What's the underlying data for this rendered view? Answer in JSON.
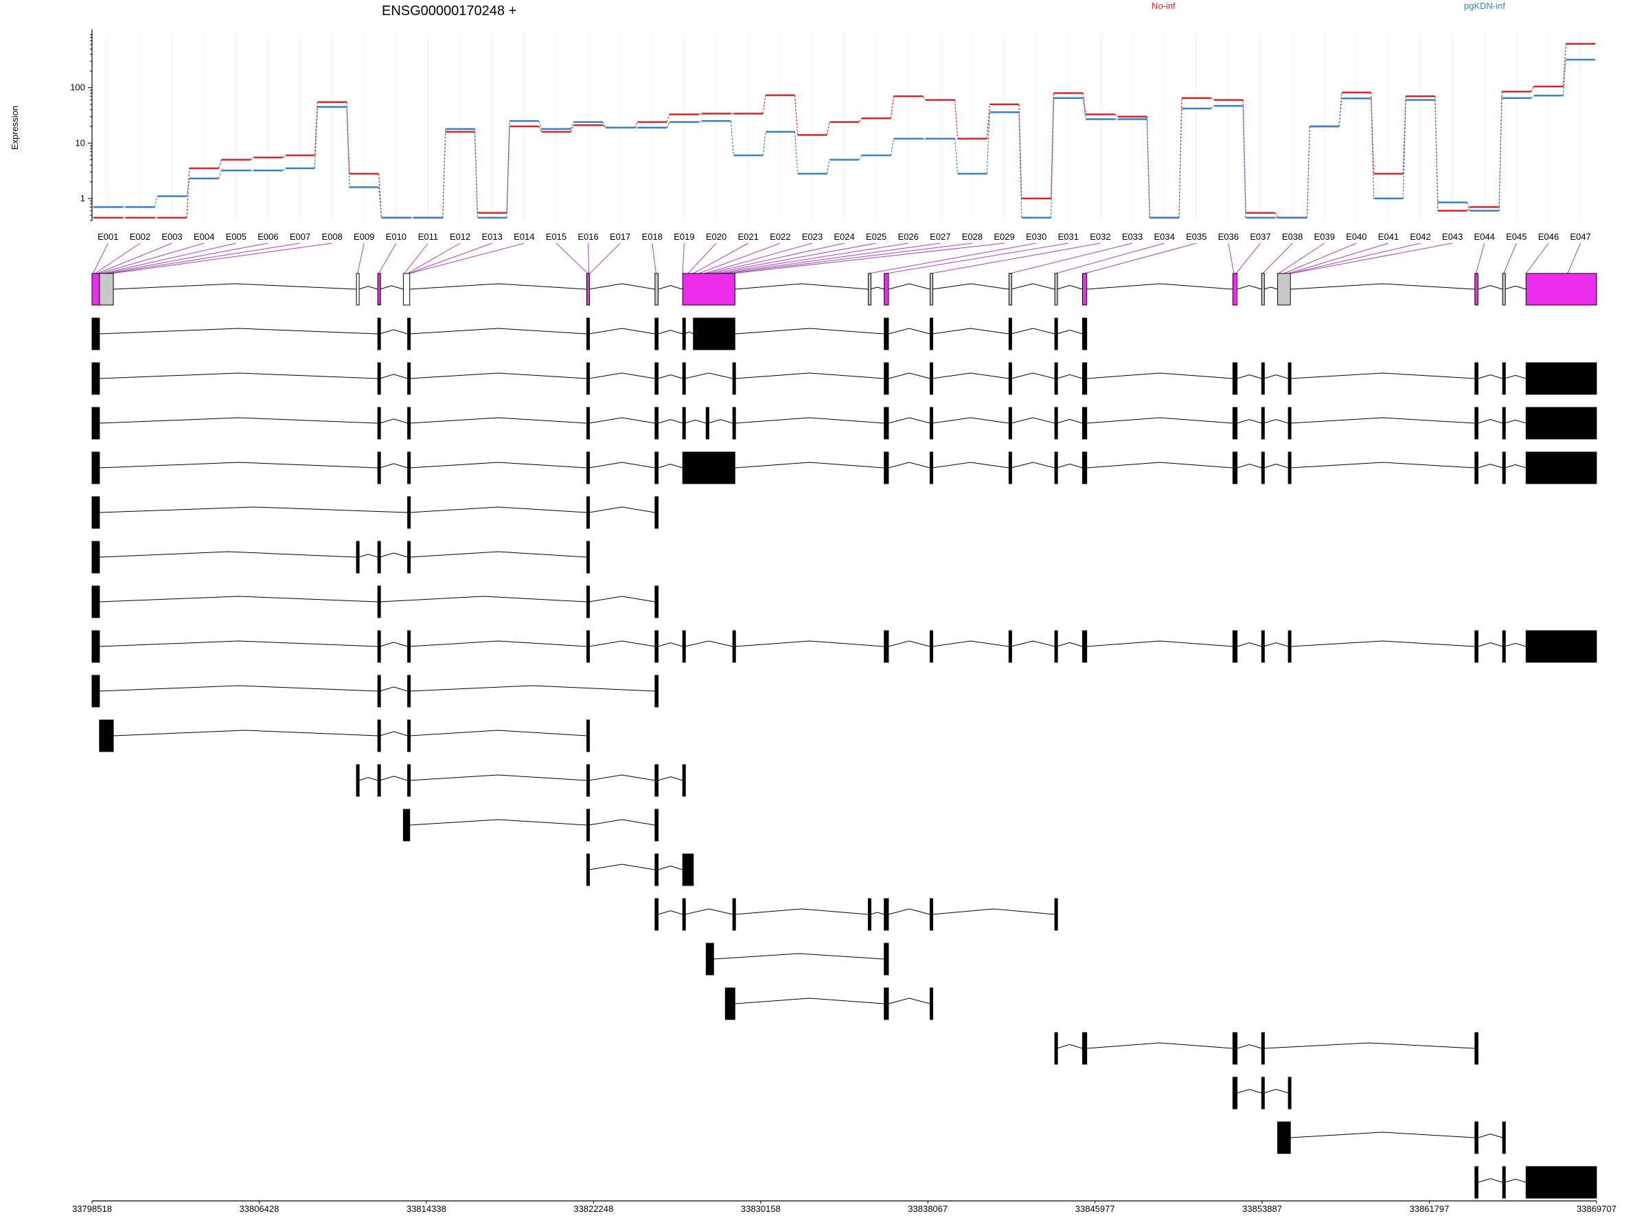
{
  "chart_data": {
    "type": "exon_usage",
    "title": "ENSG00000170248 +",
    "y_label": "Expression",
    "y_log": true,
    "ylim": [
      0.4,
      1000
    ],
    "yticks": [
      1,
      10,
      100
    ],
    "categories": [
      "E001",
      "E002",
      "E003",
      "E004",
      "E005",
      "E006",
      "E007",
      "E008",
      "E009",
      "E010",
      "E011",
      "E012",
      "E013",
      "E014",
      "E015",
      "E016",
      "E017",
      "E018",
      "E019",
      "E020",
      "E021",
      "E022",
      "E023",
      "E024",
      "E025",
      "E026",
      "E027",
      "E028",
      "E029",
      "E030",
      "E031",
      "E032",
      "E033",
      "E034",
      "E035",
      "E036",
      "E037",
      "E038",
      "E039",
      "E040",
      "E041",
      "E042",
      "E043",
      "E044",
      "E045",
      "E046",
      "E047"
    ],
    "series": [
      {
        "name": "No-inf",
        "color": "#d7262b",
        "values": [
          0.45,
          0.45,
          0.45,
          3.5,
          5,
          5.5,
          6,
          55,
          2.8,
          0.45,
          0.45,
          16,
          0.55,
          20,
          16,
          21,
          19,
          24,
          33,
          34,
          34,
          73,
          14,
          24,
          28,
          70,
          60,
          12,
          50,
          1,
          80,
          33,
          30,
          0.45,
          65,
          60,
          0.55,
          0.45,
          20,
          82,
          2.8,
          70,
          0.6,
          0.7,
          85,
          105,
          620
        ]
      },
      {
        "name": "pgKDN-inf",
        "color": "#3a7fc0",
        "values": [
          0.7,
          0.7,
          1.1,
          2.3,
          3.2,
          3.2,
          3.5,
          45,
          1.6,
          0.45,
          0.45,
          18,
          0.45,
          25,
          18,
          24,
          19,
          19,
          24,
          25,
          6,
          16,
          2.8,
          5,
          6,
          12,
          12,
          2.8,
          36,
          0.45,
          65,
          27,
          27,
          0.45,
          42,
          47,
          0.45,
          0.45,
          20,
          64,
          1,
          60,
          0.85,
          0.6,
          65,
          72,
          320
        ]
      }
    ],
    "bin_positions": [
      33798568,
      33798669,
      33798770,
      33798871,
      33799023,
      33799174,
      33799325,
      33799477,
      33811080,
      33812089,
      33813299,
      33813451,
      33813501,
      33813552,
      33821977,
      33822028,
      33822078,
      33825206,
      33826467,
      33826719,
      33826972,
      33827224,
      33827476,
      33827628,
      33827830,
      33828082,
      33828334,
      33828586,
      33828838,
      33835296,
      33836103,
      33838222,
      33841955,
      33844125,
      33845487,
      33852550,
      33852651,
      33853912,
      33854669,
      33854921,
      33855123,
      33855224,
      33855274,
      33864002,
      33865314,
      33866373,
      33868341
    ],
    "connector_color": "#a248b4",
    "xlim": [
      33798518,
      33869707
    ],
    "xticks": [
      33798518,
      33806428,
      33814338,
      33822248,
      33830158,
      33838067,
      33845977,
      33853887,
      33861797,
      33869707
    ],
    "gene_model": [
      {
        "start": 33798518,
        "end": 33798871,
        "color": "#ee2cee"
      },
      {
        "start": 33798871,
        "end": 33799527,
        "color": "#c8c8c8"
      },
      {
        "start": 33811030,
        "end": 33811130,
        "color": "#ffffff"
      },
      {
        "start": 33812039,
        "end": 33812139,
        "color": "#ee2cee"
      },
      {
        "start": 33813249,
        "end": 33813552,
        "color": "#ffffff"
      },
      {
        "start": 33821927,
        "end": 33822028,
        "color": "#ee2cee"
      },
      {
        "start": 33825156,
        "end": 33825307,
        "color": "#c8c8c8"
      },
      {
        "start": 33826467,
        "end": 33828939,
        "color": "#ee2cee"
      },
      {
        "start": 33835246,
        "end": 33835347,
        "color": "#c8c8c8"
      },
      {
        "start": 33836002,
        "end": 33836204,
        "color": "#ee2cee"
      },
      {
        "start": 33838172,
        "end": 33838273,
        "color": "#c8c8c8"
      },
      {
        "start": 33841905,
        "end": 33842006,
        "color": "#c8c8c8"
      },
      {
        "start": 33844074,
        "end": 33844175,
        "color": "#c8c8c8"
      },
      {
        "start": 33845386,
        "end": 33845588,
        "color": "#ee2cee"
      },
      {
        "start": 33852500,
        "end": 33852702,
        "color": "#ee2cee"
      },
      {
        "start": 33853862,
        "end": 33853963,
        "color": "#c8c8c8"
      },
      {
        "start": 33854618,
        "end": 33855224,
        "color": "#c8c8c8"
      },
      {
        "start": 33863952,
        "end": 33864103,
        "color": "#ee2cee"
      },
      {
        "start": 33865264,
        "end": 33865364,
        "color": "#c8c8c8"
      },
      {
        "start": 33866373,
        "end": 33869707,
        "color": "#ee2cee"
      }
    ],
    "exon_color": "#000000",
    "transcripts": [
      [
        [
          33798518,
          33798871
        ],
        [
          33812039,
          33812139
        ],
        [
          33813451,
          33813552
        ],
        [
          33821927,
          33822028
        ],
        [
          33825156,
          33825307
        ],
        [
          33826467,
          33826568
        ],
        [
          33826972,
          33828939
        ],
        [
          33836002,
          33836204
        ],
        [
          33838172,
          33838273
        ],
        [
          33841905,
          33842006
        ],
        [
          33844074,
          33844175
        ],
        [
          33845386,
          33845588
        ]
      ],
      [
        [
          33798518,
          33798871
        ],
        [
          33812039,
          33812139
        ],
        [
          33813451,
          33813552
        ],
        [
          33821927,
          33822028
        ],
        [
          33825156,
          33825307
        ],
        [
          33826467,
          33826568
        ],
        [
          33828838,
          33828939
        ],
        [
          33836002,
          33836204
        ],
        [
          33838172,
          33838273
        ],
        [
          33841905,
          33842006
        ],
        [
          33844074,
          33844175
        ],
        [
          33845386,
          33845588
        ],
        [
          33852500,
          33852702
        ],
        [
          33853862,
          33853963
        ],
        [
          33855123,
          33855224
        ],
        [
          33863952,
          33864103
        ],
        [
          33865264,
          33865364
        ],
        [
          33866373,
          33869707
        ]
      ],
      [
        [
          33798518,
          33798871
        ],
        [
          33812039,
          33812139
        ],
        [
          33813451,
          33813552
        ],
        [
          33821927,
          33822028
        ],
        [
          33825156,
          33825307
        ],
        [
          33826467,
          33826568
        ],
        [
          33827577,
          33827678
        ],
        [
          33828838,
          33828939
        ],
        [
          33836002,
          33836204
        ],
        [
          33838172,
          33838273
        ],
        [
          33841905,
          33842006
        ],
        [
          33844074,
          33844175
        ],
        [
          33845386,
          33845588
        ],
        [
          33852500,
          33852702
        ],
        [
          33853862,
          33853963
        ],
        [
          33855123,
          33855224
        ],
        [
          33863952,
          33864103
        ],
        [
          33865264,
          33865364
        ],
        [
          33866373,
          33869707
        ]
      ],
      [
        [
          33798518,
          33798871
        ],
        [
          33812039,
          33812139
        ],
        [
          33813451,
          33813552
        ],
        [
          33821927,
          33822028
        ],
        [
          33825156,
          33825307
        ],
        [
          33826467,
          33828939
        ],
        [
          33836002,
          33836204
        ],
        [
          33838172,
          33838273
        ],
        [
          33841905,
          33842006
        ],
        [
          33844074,
          33844175
        ],
        [
          33845386,
          33845588
        ],
        [
          33852500,
          33852702
        ],
        [
          33853862,
          33853963
        ],
        [
          33855123,
          33855224
        ],
        [
          33863952,
          33864103
        ],
        [
          33865264,
          33865364
        ],
        [
          33866373,
          33869707
        ]
      ],
      [
        [
          33798518,
          33798871
        ],
        [
          33813451,
          33813552
        ],
        [
          33821927,
          33822028
        ],
        [
          33825156,
          33825307
        ]
      ],
      [
        [
          33798518,
          33798871
        ],
        [
          33811030,
          33811130
        ],
        [
          33812039,
          33812139
        ],
        [
          33813451,
          33813552
        ],
        [
          33821927,
          33822028
        ]
      ],
      [
        [
          33798518,
          33798871
        ],
        [
          33812039,
          33812139
        ],
        [
          33821927,
          33822028
        ],
        [
          33825156,
          33825307
        ]
      ],
      [
        [
          33798518,
          33798871
        ],
        [
          33812039,
          33812139
        ],
        [
          33813451,
          33813552
        ],
        [
          33821927,
          33822028
        ],
        [
          33825156,
          33825307
        ],
        [
          33826467,
          33826568
        ],
        [
          33828838,
          33828939
        ],
        [
          33836002,
          33836204
        ],
        [
          33838172,
          33838273
        ],
        [
          33841905,
          33842006
        ],
        [
          33844074,
          33844175
        ],
        [
          33845386,
          33845588
        ],
        [
          33852500,
          33852702
        ],
        [
          33853862,
          33853963
        ],
        [
          33855123,
          33855224
        ],
        [
          33863952,
          33864103
        ],
        [
          33865264,
          33865364
        ],
        [
          33866373,
          33869707
        ]
      ],
      [
        [
          33798518,
          33798871
        ],
        [
          33812039,
          33812139
        ],
        [
          33813451,
          33813552
        ],
        [
          33825156,
          33825307
        ]
      ],
      [
        [
          33798871,
          33799527
        ],
        [
          33812039,
          33812139
        ],
        [
          33813451,
          33813552
        ],
        [
          33821927,
          33822028
        ]
      ],
      [
        [
          33811030,
          33811130
        ],
        [
          33812039,
          33812139
        ],
        [
          33813451,
          33813552
        ],
        [
          33821927,
          33822028
        ],
        [
          33825156,
          33825307
        ],
        [
          33826467,
          33826568
        ]
      ],
      [
        [
          33813249,
          33813552
        ],
        [
          33821927,
          33822028
        ],
        [
          33825156,
          33825307
        ]
      ],
      [
        [
          33821927,
          33822028
        ],
        [
          33825156,
          33825307
        ],
        [
          33826467,
          33826972
        ]
      ],
      [
        [
          33825156,
          33825307
        ],
        [
          33826467,
          33826568
        ],
        [
          33828838,
          33828939
        ],
        [
          33835246,
          33835347
        ],
        [
          33836002,
          33836204
        ],
        [
          33838172,
          33838273
        ],
        [
          33844074,
          33844175
        ]
      ],
      [
        [
          33827577,
          33827931
        ],
        [
          33836002,
          33836204
        ]
      ],
      [
        [
          33828485,
          33828939
        ],
        [
          33836002,
          33836204
        ],
        [
          33838172,
          33838273
        ]
      ],
      [
        [
          33844074,
          33844175
        ],
        [
          33845386,
          33845588
        ],
        [
          33852500,
          33852702
        ],
        [
          33853862,
          33853963
        ],
        [
          33863952,
          33864103
        ]
      ],
      [
        [
          33852500,
          33852702
        ],
        [
          33853862,
          33853963
        ],
        [
          33855123,
          33855224
        ]
      ],
      [
        [
          33854618,
          33855224
        ],
        [
          33863952,
          33864103
        ],
        [
          33865264,
          33865364
        ]
      ],
      [
        [
          33863952,
          33864103
        ],
        [
          33865264,
          33865364
        ],
        [
          33866373,
          33869707
        ]
      ]
    ]
  }
}
